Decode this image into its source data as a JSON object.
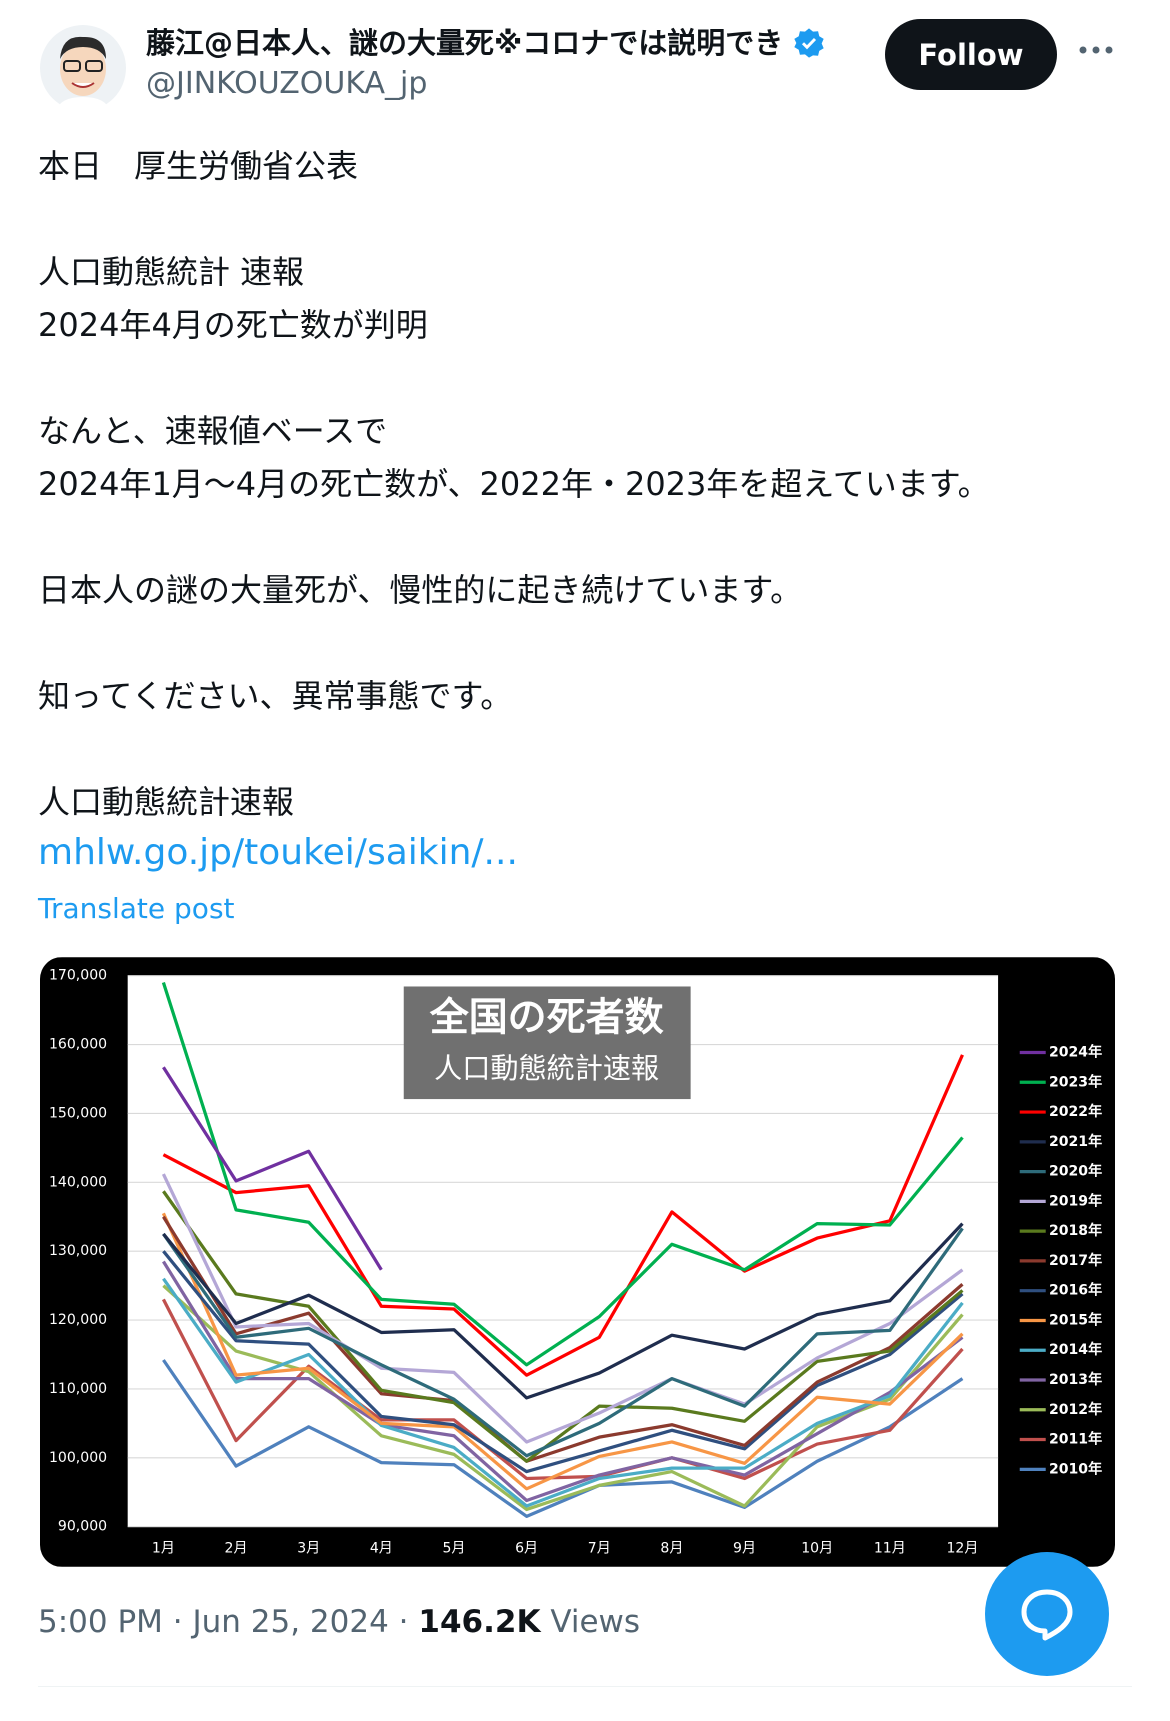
{
  "header": {
    "name": "藤江@日本人、謎の大量死※コロナでは説明でき",
    "handle": "@JINKOUZOUKA_jp",
    "follow": "Follow"
  },
  "post": {
    "paragraphs": [
      [
        "本日　厚生労働省公表"
      ],
      [
        "人口動態統計 速報",
        "2024年4月の死亡数が判明"
      ],
      [
        "なんと、速報値ベースで",
        "2024年1月〜4月の死亡数が、2022年・2023年を超えています。"
      ],
      [
        "日本人の謎の大量死が、慢性的に起き続けています。"
      ],
      [
        "知ってください、異常事態です。"
      ],
      [
        "人口動態統計速報"
      ]
    ],
    "link": "mhlw.go.jp/toukei/saikin/...",
    "translate": "Translate post"
  },
  "chart_data": {
    "type": "line",
    "title": "全国の死者数",
    "subtitle": "人口動態統計速報",
    "categories": [
      "1月",
      "2月",
      "3月",
      "4月",
      "5月",
      "6月",
      "7月",
      "8月",
      "9月",
      "10月",
      "11月",
      "12月"
    ],
    "ylim": [
      90000,
      170000
    ],
    "yticks": [
      {
        "value": 90000,
        "label": "90,000"
      },
      {
        "value": 100000,
        "label": "100,000"
      },
      {
        "value": 110000,
        "label": "110,000"
      },
      {
        "value": 120000,
        "label": "120,000"
      },
      {
        "value": 130000,
        "label": "130,000"
      },
      {
        "value": 140000,
        "label": "140,000"
      },
      {
        "value": 150000,
        "label": "150,000"
      },
      {
        "value": 160000,
        "label": "160,000"
      },
      {
        "value": 170000,
        "label": "170,000"
      }
    ],
    "grid": true,
    "legend": "right",
    "series": [
      {
        "name": "2024年",
        "color": "#7030a0",
        "values": [
          156700,
          140200,
          144500,
          127300,
          null,
          null,
          null,
          null,
          null,
          null,
          null,
          null
        ]
      },
      {
        "name": "2023年",
        "color": "#00b050",
        "values": [
          169000,
          136000,
          134200,
          123000,
          122300,
          113500,
          120500,
          131000,
          127300,
          134000,
          133800,
          146500
        ]
      },
      {
        "name": "2022年",
        "color": "#ff0000",
        "values": [
          144000,
          138500,
          139500,
          122000,
          121600,
          112000,
          117500,
          135700,
          127100,
          131900,
          134400,
          158500
        ]
      },
      {
        "name": "2021年",
        "color": "#1f2d4e",
        "values": [
          132500,
          119500,
          123600,
          118200,
          118600,
          108700,
          112300,
          117800,
          115800,
          120800,
          122800,
          134000
        ]
      },
      {
        "name": "2020年",
        "color": "#2e6b7a",
        "values": [
          132500,
          117500,
          118800,
          113500,
          108500,
          100300,
          105000,
          111500,
          107500,
          118000,
          118500,
          133300
        ]
      },
      {
        "name": "2019年",
        "color": "#b4a7d6",
        "values": [
          141200,
          119000,
          119500,
          113000,
          112400,
          102300,
          106500,
          111500,
          107800,
          114500,
          119500,
          127300
        ]
      },
      {
        "name": "2018年",
        "color": "#5a7a1e",
        "values": [
          138700,
          123800,
          122000,
          109800,
          108000,
          99500,
          107500,
          107200,
          105300,
          114000,
          115500,
          124300
        ]
      },
      {
        "name": "2017年",
        "color": "#8b3a2e",
        "values": [
          135000,
          118000,
          121000,
          109300,
          108300,
          99500,
          103000,
          104800,
          101800,
          111000,
          116000,
          125200
        ]
      },
      {
        "name": "2016年",
        "color": "#2f4f7f",
        "values": [
          130000,
          117000,
          116500,
          106000,
          104800,
          98000,
          101000,
          104000,
          101300,
          110500,
          115000,
          123800
        ]
      },
      {
        "name": "2015年",
        "color": "#f79646",
        "values": [
          135500,
          112000,
          113000,
          105000,
          104500,
          95500,
          100200,
          102300,
          99200,
          108800,
          107800,
          118000
        ]
      },
      {
        "name": "2014年",
        "color": "#4bacc6",
        "values": [
          126000,
          111000,
          115000,
          104700,
          101500,
          93000,
          97000,
          98500,
          98500,
          105000,
          109000,
          122500
        ]
      },
      {
        "name": "2013年",
        "color": "#8064a2",
        "values": [
          128500,
          111500,
          111500,
          104800,
          103200,
          93800,
          97500,
          100000,
          97500,
          103500,
          109500,
          117500
        ]
      },
      {
        "name": "2012年",
        "color": "#9bbb59",
        "values": [
          125000,
          115500,
          112500,
          103200,
          100500,
          92500,
          96000,
          98000,
          93000,
          104500,
          108500,
          120800
        ]
      },
      {
        "name": "2011年",
        "color": "#c0504d",
        "values": [
          123000,
          102500,
          113300,
          105500,
          105500,
          97000,
          97300,
          100000,
          97000,
          102000,
          104000,
          115800
        ]
      },
      {
        "name": "2010年",
        "color": "#4f81bd",
        "values": [
          114200,
          98800,
          104500,
          99300,
          99000,
          91500,
          96000,
          96500,
          92800,
          99500,
          104500,
          111500
        ]
      }
    ]
  },
  "footer": {
    "timestamp": "5:00 PM · Jun 25, 2024",
    "separator": "·",
    "views": "146.2K",
    "views_label": "Views"
  }
}
